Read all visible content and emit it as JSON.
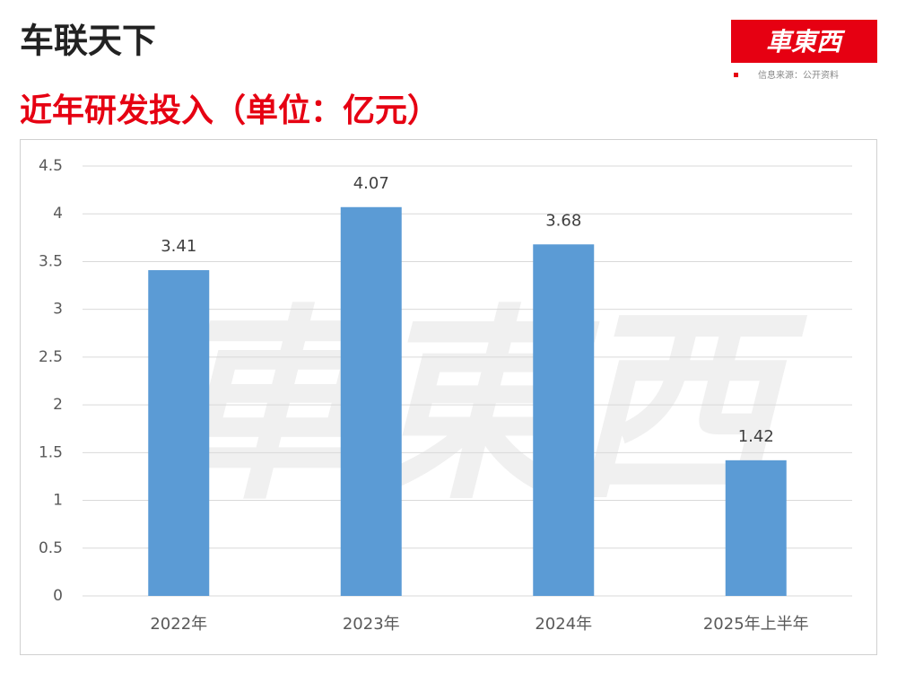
{
  "header": {
    "title": "车联天下",
    "logo": "車東西",
    "source": "信息来源：公开资料"
  },
  "chart_data": {
    "type": "bar",
    "title": "近年研发投入（单位：亿元）",
    "categories": [
      "2022年",
      "2023年",
      "2024年",
      "2025年上半年"
    ],
    "values": [
      3.41,
      4.07,
      3.68,
      1.42
    ],
    "color": "#5b9bd5",
    "ylim": [
      0,
      4.5
    ],
    "yticks": [
      0,
      0.5,
      1,
      1.5,
      2,
      2.5,
      3,
      3.5,
      4,
      4.5
    ],
    "grid": true
  }
}
